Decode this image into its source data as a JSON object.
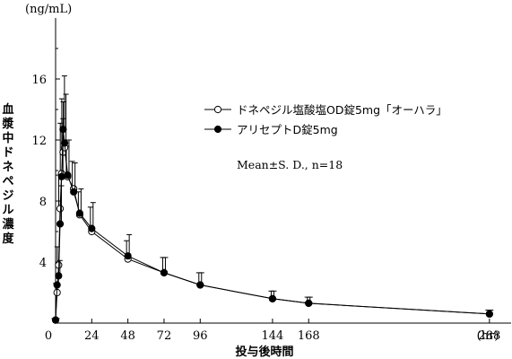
{
  "chart_data": {
    "type": "line",
    "title": "",
    "xlabel": "投与後時間",
    "x_unit": "(hr)",
    "ylabel": "血漿中ドネペジル濃度",
    "y_unit": "(ng/mL)",
    "xlim": [
      0,
      300
    ],
    "ylim": [
      0,
      20
    ],
    "x_ticks": [
      0,
      24,
      48,
      72,
      96,
      144,
      168,
      288
    ],
    "y_ticks": [
      4,
      8,
      12,
      16
    ],
    "annotation": "Mean±S. D., n=18",
    "legend_position": "right",
    "series": [
      {
        "name": "ドネペジル塩酸塩OD錠5mg「オーハラ」",
        "marker": "open-circle",
        "x": [
          0,
          1,
          2,
          3,
          4,
          5,
          6,
          8,
          12,
          16,
          24,
          48,
          72,
          96,
          144,
          168,
          288
        ],
        "y": [
          0.2,
          2.0,
          3.8,
          7.5,
          9.8,
          11.2,
          11.5,
          9.6,
          8.8,
          7.1,
          6.0,
          4.2,
          3.3,
          2.5,
          1.6,
          1.3,
          0.6
        ],
        "sd": [
          0.1,
          0.6,
          1.2,
          2.2,
          3.3,
          3.5,
          3.0,
          2.0,
          1.8,
          1.5,
          1.6,
          1.2,
          1.0,
          0.8,
          0.5,
          0.4,
          0.25
        ]
      },
      {
        "name": "アリセプトD錠5mg",
        "marker": "filled-circle",
        "x": [
          0,
          1,
          2,
          3,
          4,
          5,
          6,
          8,
          12,
          16,
          24,
          48,
          72,
          96,
          144,
          168,
          288
        ],
        "y": [
          0.2,
          2.5,
          3.1,
          6.5,
          9.6,
          12.7,
          11.8,
          9.7,
          8.6,
          7.2,
          6.2,
          4.4,
          3.3,
          2.5,
          1.6,
          1.3,
          0.6
        ],
        "sd": [
          0.1,
          0.7,
          1.0,
          2.5,
          3.8,
          3.5,
          3.2,
          2.3,
          1.9,
          1.6,
          1.7,
          1.4,
          1.0,
          0.8,
          0.5,
          0.4,
          0.25
        ]
      }
    ]
  }
}
